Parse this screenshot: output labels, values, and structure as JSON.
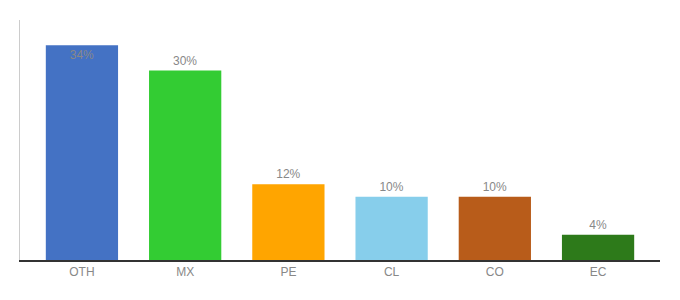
{
  "chart_data": {
    "type": "bar",
    "categories": [
      "OTH",
      "MX",
      "PE",
      "CL",
      "CO",
      "EC"
    ],
    "values": [
      34,
      30,
      12,
      10,
      10,
      4
    ],
    "value_labels": [
      "34%",
      "30%",
      "12%",
      "10%",
      "10%",
      "4%"
    ],
    "colors": [
      "#4472C4",
      "#33CC33",
      "#FFA500",
      "#87CEEB",
      "#B85C1A",
      "#2D7A1A"
    ],
    "ylim": [
      0,
      38
    ],
    "data_labels": true,
    "tick_labels": "x",
    "grid": false
  }
}
